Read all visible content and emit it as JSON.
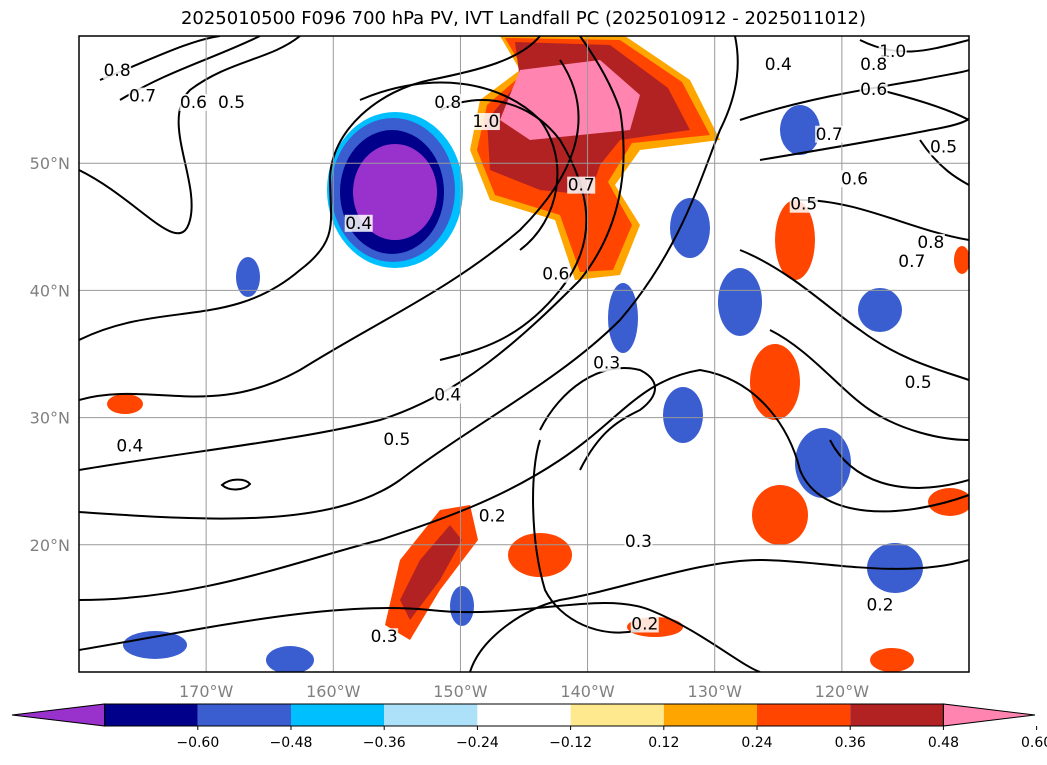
{
  "title": "2025010500 F096 700 hPa PV, IVT Landfall PC (2025010912 - 2025011012)",
  "map": {
    "lon_range": [
      -180,
      -110
    ],
    "lat_range": [
      10,
      60
    ],
    "lon_ticks": [
      {
        "lon": -170,
        "label": "170°W"
      },
      {
        "lon": -160,
        "label": "160°W"
      },
      {
        "lon": -150,
        "label": "150°W"
      },
      {
        "lon": -140,
        "label": "140°W"
      },
      {
        "lon": -130,
        "label": "130°W"
      },
      {
        "lon": -120,
        "label": "120°W"
      }
    ],
    "lat_ticks": [
      {
        "lat": 20,
        "label": "20°N"
      },
      {
        "lat": 30,
        "label": "30°N"
      },
      {
        "lat": 40,
        "label": "40°N"
      },
      {
        "lat": 50,
        "label": "50°N"
      }
    ],
    "grid": true
  },
  "colorbar": {
    "colors": [
      "#9932CC",
      "#00008B",
      "#3A5ED0",
      "#00BFFF",
      "#ADE1F9",
      "#FFFFFF",
      "#FFE98F",
      "#FFA500",
      "#FF4500",
      "#B22222",
      "#FF85B0"
    ],
    "ticks": [
      "−0.60",
      "−0.48",
      "−0.36",
      "−0.24",
      "−0.12",
      "0.12",
      "0.24",
      "0.36",
      "0.48",
      "0.60"
    ],
    "extend": "both"
  },
  "contour_labels": [
    {
      "text": "0.8",
      "lon": -177,
      "lat": 57
    },
    {
      "text": "0.7",
      "lon": -175,
      "lat": 55
    },
    {
      "text": "0.6",
      "lon": -171,
      "lat": 54.5
    },
    {
      "text": "0.5",
      "lon": -168,
      "lat": 54.5
    },
    {
      "text": "0.8",
      "lon": -151,
      "lat": 54.5
    },
    {
      "text": "1.0",
      "lon": -148,
      "lat": 53
    },
    {
      "text": "1.0",
      "lon": -116,
      "lat": 58.5
    },
    {
      "text": "0.8",
      "lon": -117.5,
      "lat": 57.5
    },
    {
      "text": "0.6",
      "lon": -117.5,
      "lat": 55.5
    },
    {
      "text": "0.4",
      "lon": -125,
      "lat": 57.5
    },
    {
      "text": "0.5",
      "lon": -112,
      "lat": 51
    },
    {
      "text": "0.7",
      "lon": -121,
      "lat": 52
    },
    {
      "text": "0.6",
      "lon": -119,
      "lat": 48.5
    },
    {
      "text": "0.5",
      "lon": -123,
      "lat": 46.5
    },
    {
      "text": "0.4",
      "lon": -158,
      "lat": 45
    },
    {
      "text": "0.7",
      "lon": -140.5,
      "lat": 48
    },
    {
      "text": "0.6",
      "lon": -142.5,
      "lat": 41
    },
    {
      "text": "0.3",
      "lon": -138.5,
      "lat": 34
    },
    {
      "text": "0.4",
      "lon": -151,
      "lat": 31.5
    },
    {
      "text": "0.5",
      "lon": -155,
      "lat": 28
    },
    {
      "text": "0.4",
      "lon": -176,
      "lat": 27.5
    },
    {
      "text": "0.2",
      "lon": -147.5,
      "lat": 22
    },
    {
      "text": "0.3",
      "lon": -136,
      "lat": 20
    },
    {
      "text": "0.3",
      "lon": -156,
      "lat": 12.5
    },
    {
      "text": "0.2",
      "lon": -135.5,
      "lat": 13.5
    },
    {
      "text": "0.2",
      "lon": -117,
      "lat": 15
    },
    {
      "text": "0.5",
      "lon": -114,
      "lat": 32.5
    },
    {
      "text": "0.7",
      "lon": -114.5,
      "lat": 42
    },
    {
      "text": "0.8",
      "lon": -113,
      "lat": 43.5
    }
  ]
}
